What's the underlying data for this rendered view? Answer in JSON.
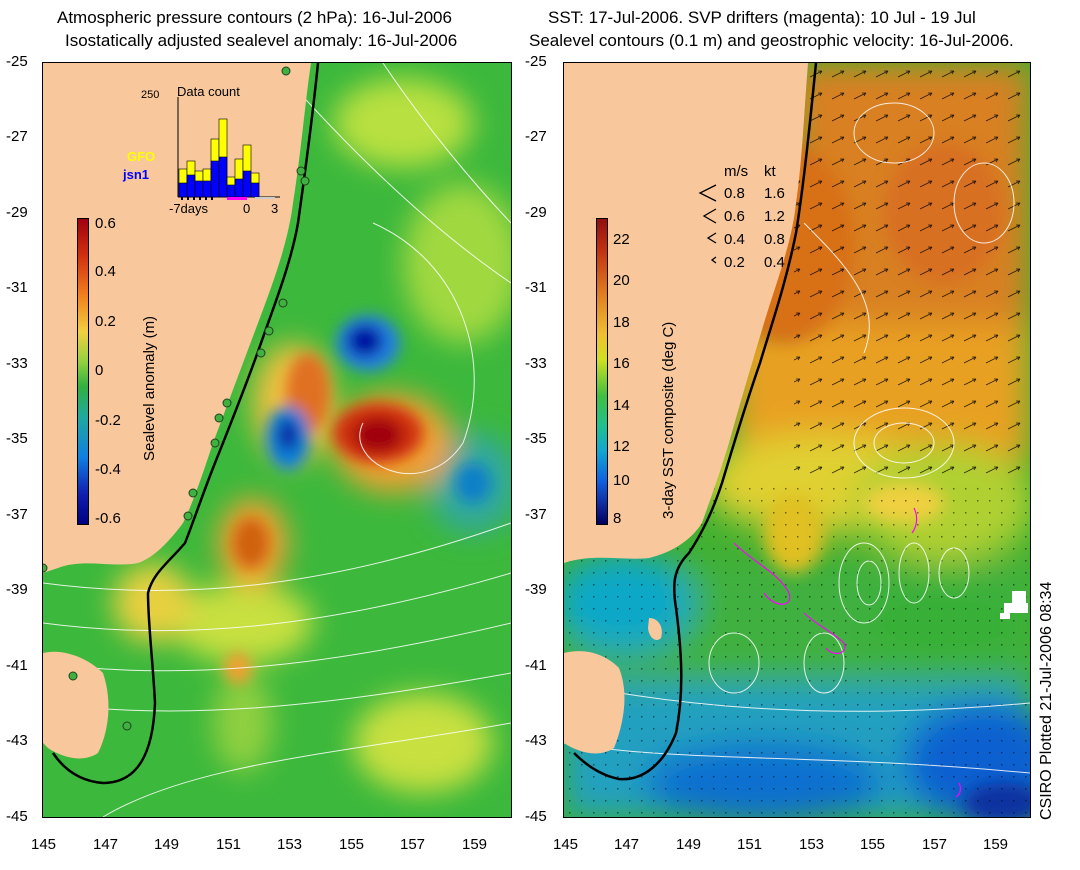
{
  "left_panel": {
    "title_line1": "Atmospheric pressure contours (2 hPa): 16-Jul-2006",
    "title_line2": "Isostatically adjusted sealevel anomaly: 16-Jul-2006",
    "colorbar": {
      "label": "Sealevel anomaly (m)",
      "ticks": [
        "0.6",
        "0.4",
        "0.2",
        "0",
        "-0.2",
        "-0.4",
        "-0.6"
      ]
    },
    "inset": {
      "title": "Data count",
      "y_max_label": "250",
      "x_labels": [
        "-7days",
        "0",
        "3"
      ],
      "legend": [
        {
          "name": "GFO",
          "color": "#ffff00"
        },
        {
          "name": "jsn1",
          "color": "#0000ff"
        }
      ]
    }
  },
  "right_panel": {
    "title_line1": "SST: 17-Jul-2006. SVP drifters (magenta): 10 Jul - 19 Jul",
    "title_line2": "Sealevel contours (0.1 m) and geostrophic velocity: 16-Jul-2006.",
    "colorbar": {
      "label": "3-day SST composite (deg C)",
      "ticks": [
        "22",
        "20",
        "18",
        "16",
        "14",
        "12",
        "10",
        "8"
      ]
    },
    "speed_legend": {
      "header_ms": "m/s",
      "header_kt": "kt",
      "rows": [
        {
          "ms": "0.8",
          "kt": "1.6"
        },
        {
          "ms": "0.6",
          "kt": "1.2"
        },
        {
          "ms": "0.4",
          "kt": "0.8"
        },
        {
          "ms": "0.2",
          "kt": "0.4"
        }
      ]
    }
  },
  "axes": {
    "y_ticks": [
      "-25",
      "-27",
      "-29",
      "-31",
      "-33",
      "-35",
      "-37",
      "-39",
      "-41",
      "-43",
      "-45"
    ],
    "x_ticks": [
      "145",
      "147",
      "149",
      "151",
      "153",
      "155",
      "157",
      "159"
    ]
  },
  "credit": "CSIRO Plotted 21-Jul-2006 08:34",
  "colors": {
    "land": "#f8c89c",
    "coast": "#000000",
    "contour": "#ffffff",
    "drifter": "#ff00ff"
  }
}
